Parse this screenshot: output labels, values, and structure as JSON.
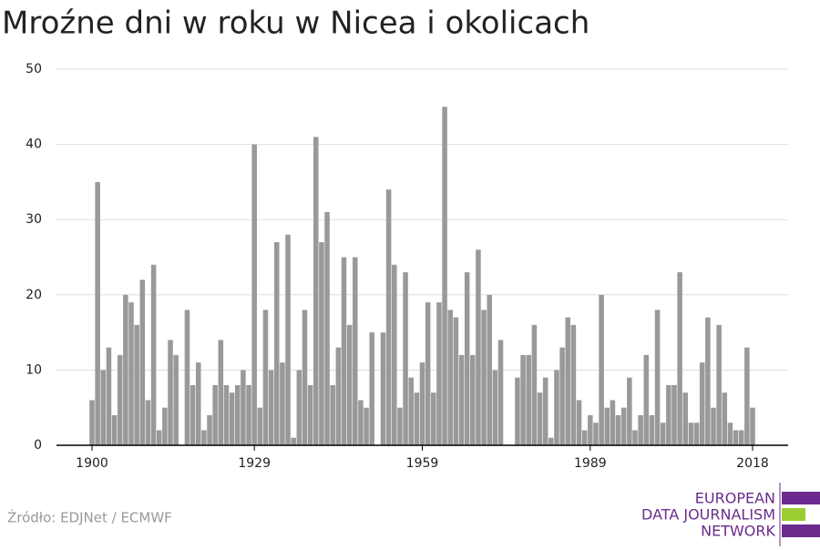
{
  "chart_data": {
    "type": "bar",
    "title": "Mroźne dni w roku w Nicea i okolicach",
    "x": [
      1900,
      1901,
      1902,
      1903,
      1904,
      1905,
      1906,
      1907,
      1908,
      1909,
      1910,
      1911,
      1912,
      1913,
      1914,
      1915,
      1916,
      1917,
      1918,
      1919,
      1920,
      1921,
      1922,
      1923,
      1924,
      1925,
      1926,
      1927,
      1928,
      1929,
      1930,
      1931,
      1932,
      1933,
      1934,
      1935,
      1936,
      1937,
      1938,
      1939,
      1940,
      1941,
      1942,
      1943,
      1944,
      1945,
      1946,
      1947,
      1948,
      1949,
      1950,
      1951,
      1952,
      1953,
      1954,
      1955,
      1956,
      1957,
      1958,
      1959,
      1960,
      1961,
      1962,
      1963,
      1964,
      1965,
      1966,
      1967,
      1968,
      1969,
      1970,
      1971,
      1972,
      1973,
      1974,
      1975,
      1976,
      1977,
      1978,
      1979,
      1980,
      1981,
      1982,
      1983,
      1984,
      1985,
      1986,
      1987,
      1988,
      1989,
      1990,
      1991,
      1992,
      1993,
      1994,
      1995,
      1996,
      1997,
      1998,
      1999,
      2000,
      2001,
      2002,
      2003,
      2004,
      2005,
      2006,
      2007,
      2008,
      2009,
      2010,
      2011,
      2012,
      2013,
      2014,
      2015,
      2016,
      2017,
      2018
    ],
    "values": [
      6,
      35,
      10,
      13,
      4,
      12,
      20,
      19,
      16,
      22,
      6,
      24,
      2,
      5,
      14,
      12,
      0,
      18,
      8,
      11,
      2,
      4,
      8,
      14,
      8,
      7,
      8,
      10,
      8,
      40,
      5,
      18,
      10,
      27,
      11,
      28,
      1,
      10,
      18,
      8,
      41,
      27,
      31,
      8,
      13,
      25,
      16,
      25,
      6,
      5,
      15,
      0,
      15,
      34,
      24,
      5,
      23,
      9,
      7,
      11,
      19,
      7,
      19,
      45,
      18,
      17,
      12,
      23,
      12,
      26,
      18,
      20,
      10,
      14,
      0,
      0,
      9,
      12,
      12,
      16,
      7,
      9,
      1,
      10,
      13,
      17,
      16,
      6,
      2,
      4,
      3,
      20,
      5,
      6,
      4,
      5,
      9,
      2,
      4,
      12,
      4,
      18,
      3,
      8,
      8,
      23,
      7,
      3,
      3,
      11,
      17,
      5,
      16,
      7,
      3,
      2,
      2,
      13,
      5
    ],
    "color": "#999999",
    "xlim": [
      1900,
      2018
    ],
    "xticks": [
      1900,
      1929,
      1959,
      1989,
      2018
    ],
    "ylim": [
      0,
      50
    ],
    "yticks": [
      0,
      10,
      20,
      30,
      40,
      50
    ],
    "grid": true,
    "source": "Źródło: EDJNet / ECMWF",
    "logo": [
      "EUROPEAN",
      "DATA JOURNALISM",
      "NETWORK"
    ]
  }
}
